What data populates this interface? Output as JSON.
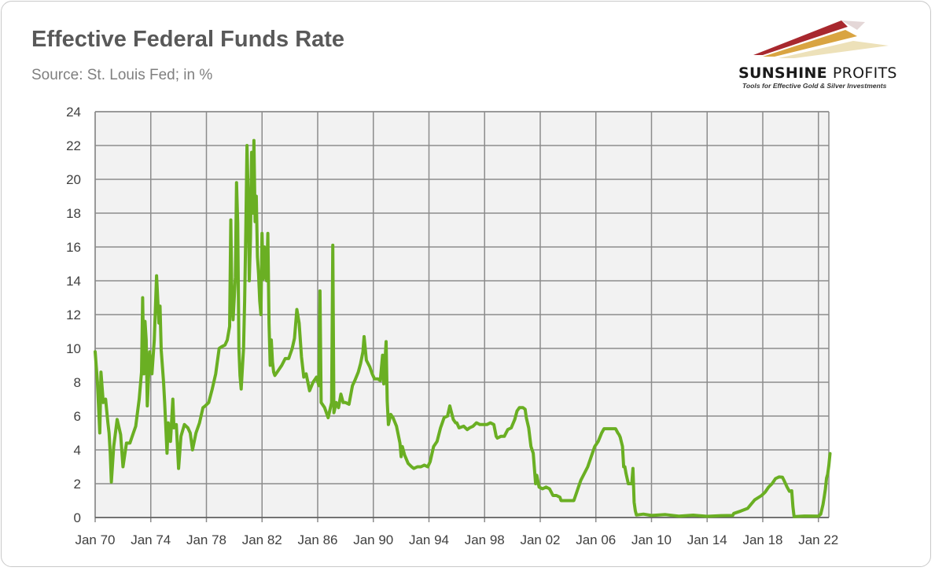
{
  "header": {
    "title": "Effective Federal Funds Rate",
    "subtitle": "Source: St. Louis Fed; in %"
  },
  "logo": {
    "name_bold": "SUNSHINE",
    "name_thin": "PROFITS",
    "tagline": "Tools for Effective Gold & Silver Investments"
  },
  "colors": {
    "line": "#6aaf23",
    "plot_bg": "#f2f2f2",
    "grid": "#8c8c8c",
    "text": "#404040"
  },
  "chart_data": {
    "type": "line",
    "title": "Effective Federal Funds Rate",
    "subtitle": "Source: St. Louis Fed; in %",
    "xlabel": "",
    "ylabel": "",
    "ylim": [
      0,
      24
    ],
    "xlim": [
      "1970-01",
      "2022-10"
    ],
    "grid": true,
    "legend": "none",
    "y_ticks": [
      0,
      2,
      4,
      6,
      8,
      10,
      12,
      14,
      16,
      18,
      20,
      22,
      24
    ],
    "x_tick_labels": [
      "Jan 70",
      "Jan 74",
      "Jan 78",
      "Jan 82",
      "Jan 86",
      "Jan 90",
      "Jan 94",
      "Jan 98",
      "Jan 02",
      "Jan 06",
      "Jan 10",
      "Jan 14",
      "Jan 18",
      "Jan 22"
    ],
    "x_tick_dates": [
      "1970-01",
      "1974-01",
      "1978-01",
      "1982-01",
      "1986-01",
      "1990-01",
      "1994-01",
      "1998-01",
      "2002-01",
      "2006-01",
      "2010-01",
      "2014-01",
      "2018-01",
      "2022-01"
    ],
    "series": [
      {
        "points": [
          [
            "1970-01",
            9.8
          ],
          [
            "1970-03",
            8.0
          ],
          [
            "1970-05",
            5.0
          ],
          [
            "1970-06",
            8.6
          ],
          [
            "1970-08",
            6.8
          ],
          [
            "1970-10",
            7.0
          ],
          [
            "1970-12",
            5.6
          ],
          [
            "1971-01",
            5.0
          ],
          [
            "1971-02",
            3.8
          ],
          [
            "1971-03",
            2.1
          ],
          [
            "1971-05",
            4.2
          ],
          [
            "1971-08",
            5.8
          ],
          [
            "1971-11",
            4.9
          ],
          [
            "1972-01",
            3.0
          ],
          [
            "1972-04",
            4.4
          ],
          [
            "1972-07",
            4.4
          ],
          [
            "1972-10",
            5.0
          ],
          [
            "1972-12",
            5.4
          ],
          [
            "1973-03",
            7.0
          ],
          [
            "1973-05",
            8.6
          ],
          [
            "1973-06",
            13.0
          ],
          [
            "1973-07",
            8.5
          ],
          [
            "1973-08",
            11.6
          ],
          [
            "1973-09",
            10.5
          ],
          [
            "1973-10",
            6.6
          ],
          [
            "1973-12",
            9.8
          ],
          [
            "1974-02",
            8.5
          ],
          [
            "1974-04",
            10.5
          ],
          [
            "1974-06",
            14.3
          ],
          [
            "1974-07",
            12.9
          ],
          [
            "1974-08",
            11.5
          ],
          [
            "1974-09",
            12.5
          ],
          [
            "1974-10",
            9.9
          ],
          [
            "1974-12",
            8.0
          ],
          [
            "1975-01",
            6.8
          ],
          [
            "1975-03",
            3.8
          ],
          [
            "1975-04",
            5.6
          ],
          [
            "1975-06",
            4.5
          ],
          [
            "1975-08",
            7.0
          ],
          [
            "1975-09",
            5.3
          ],
          [
            "1975-11",
            5.5
          ],
          [
            "1976-01",
            2.9
          ],
          [
            "1976-03",
            4.8
          ],
          [
            "1976-06",
            5.5
          ],
          [
            "1976-09",
            5.3
          ],
          [
            "1976-11",
            5.0
          ],
          [
            "1977-01",
            4.0
          ],
          [
            "1977-04",
            5.0
          ],
          [
            "1977-07",
            5.6
          ],
          [
            "1977-10",
            6.5
          ],
          [
            "1977-12",
            6.6
          ],
          [
            "1978-03",
            6.8
          ],
          [
            "1978-06",
            7.6
          ],
          [
            "1978-09",
            8.5
          ],
          [
            "1978-12",
            10.0
          ],
          [
            "1979-02",
            10.1
          ],
          [
            "1979-05",
            10.2
          ],
          [
            "1979-07",
            10.5
          ],
          [
            "1979-09",
            11.3
          ],
          [
            "1979-10",
            17.6
          ],
          [
            "1979-11",
            13.0
          ],
          [
            "1979-12",
            11.7
          ],
          [
            "1980-02",
            14.2
          ],
          [
            "1980-03",
            19.8
          ],
          [
            "1980-04",
            17.4
          ],
          [
            "1980-05",
            10.0
          ],
          [
            "1980-06",
            8.4
          ],
          [
            "1980-07",
            7.6
          ],
          [
            "1980-09",
            10.0
          ],
          [
            "1980-10",
            12.8
          ],
          [
            "1980-11",
            17.0
          ],
          [
            "1980-12",
            22.0
          ],
          [
            "1981-01",
            19.0
          ],
          [
            "1981-02",
            14.0
          ],
          [
            "1981-03",
            16.5
          ],
          [
            "1981-04",
            21.6
          ],
          [
            "1981-05",
            18.0
          ],
          [
            "1981-06",
            22.3
          ],
          [
            "1981-07",
            17.5
          ],
          [
            "1981-08",
            19.0
          ],
          [
            "1981-09",
            15.4
          ],
          [
            "1981-10",
            14.4
          ],
          [
            "1981-11",
            12.8
          ],
          [
            "1981-12",
            12.0
          ],
          [
            "1982-01",
            16.8
          ],
          [
            "1982-02",
            14.1
          ],
          [
            "1982-03",
            16.0
          ],
          [
            "1982-04",
            14.5
          ],
          [
            "1982-05",
            14.0
          ],
          [
            "1982-06",
            16.8
          ],
          [
            "1982-07",
            11.5
          ],
          [
            "1982-08",
            9.0
          ],
          [
            "1982-09",
            10.5
          ],
          [
            "1982-10",
            9.2
          ],
          [
            "1982-11",
            8.6
          ],
          [
            "1982-12",
            8.4
          ],
          [
            "1983-03",
            8.7
          ],
          [
            "1983-06",
            9.0
          ],
          [
            "1983-09",
            9.4
          ],
          [
            "1983-12",
            9.4
          ],
          [
            "1984-03",
            10.0
          ],
          [
            "1984-05",
            10.6
          ],
          [
            "1984-07",
            12.3
          ],
          [
            "1984-09",
            11.5
          ],
          [
            "1984-11",
            9.5
          ],
          [
            "1985-01",
            8.3
          ],
          [
            "1985-03",
            8.5
          ],
          [
            "1985-06",
            7.5
          ],
          [
            "1985-09",
            8.0
          ],
          [
            "1985-12",
            8.3
          ],
          [
            "1986-02",
            7.8
          ],
          [
            "1986-03",
            13.4
          ],
          [
            "1986-04",
            6.8
          ],
          [
            "1986-07",
            6.5
          ],
          [
            "1986-10",
            5.9
          ],
          [
            "1986-12",
            6.5
          ],
          [
            "1987-01",
            6.8
          ],
          [
            "1987-02",
            16.1
          ],
          [
            "1987-03",
            6.2
          ],
          [
            "1987-05",
            6.8
          ],
          [
            "1987-07",
            6.5
          ],
          [
            "1987-09",
            7.3
          ],
          [
            "1987-11",
            6.8
          ],
          [
            "1988-01",
            6.8
          ],
          [
            "1988-04",
            6.7
          ],
          [
            "1988-07",
            7.8
          ],
          [
            "1988-09",
            8.1
          ],
          [
            "1988-12",
            8.6
          ],
          [
            "1989-02",
            9.1
          ],
          [
            "1989-04",
            9.8
          ],
          [
            "1989-05",
            10.7
          ],
          [
            "1989-07",
            9.3
          ],
          [
            "1989-10",
            8.9
          ],
          [
            "1989-12",
            8.5
          ],
          [
            "1990-02",
            8.2
          ],
          [
            "1990-05",
            8.2
          ],
          [
            "1990-07",
            8.1
          ],
          [
            "1990-09",
            9.6
          ],
          [
            "1990-10",
            7.9
          ],
          [
            "1990-12",
            10.4
          ],
          [
            "1991-01",
            6.9
          ],
          [
            "1991-02",
            5.5
          ],
          [
            "1991-04",
            6.1
          ],
          [
            "1991-06",
            5.9
          ],
          [
            "1991-09",
            5.4
          ],
          [
            "1991-12",
            4.4
          ],
          [
            "1992-01",
            3.6
          ],
          [
            "1992-02",
            4.2
          ],
          [
            "1992-04",
            3.7
          ],
          [
            "1992-07",
            3.2
          ],
          [
            "1992-10",
            3.0
          ],
          [
            "1992-12",
            2.9
          ],
          [
            "1993-03",
            3.0
          ],
          [
            "1993-06",
            3.0
          ],
          [
            "1993-09",
            3.1
          ],
          [
            "1993-12",
            3.0
          ],
          [
            "1994-02",
            3.3
          ],
          [
            "1994-05",
            4.2
          ],
          [
            "1994-08",
            4.5
          ],
          [
            "1994-11",
            5.3
          ],
          [
            "1994-12",
            5.5
          ],
          [
            "1995-02",
            5.9
          ],
          [
            "1995-05",
            6.0
          ],
          [
            "1995-07",
            6.6
          ],
          [
            "1995-10",
            5.8
          ],
          [
            "1995-12",
            5.6
          ],
          [
            "1996-01",
            5.6
          ],
          [
            "1996-03",
            5.3
          ],
          [
            "1996-07",
            5.4
          ],
          [
            "1996-10",
            5.2
          ],
          [
            "1996-12",
            5.3
          ],
          [
            "1997-03",
            5.4
          ],
          [
            "1997-06",
            5.6
          ],
          [
            "1997-09",
            5.5
          ],
          [
            "1997-12",
            5.5
          ],
          [
            "1998-03",
            5.5
          ],
          [
            "1998-06",
            5.6
          ],
          [
            "1998-09",
            5.5
          ],
          [
            "1998-11",
            4.8
          ],
          [
            "1998-12",
            4.7
          ],
          [
            "1999-03",
            4.8
          ],
          [
            "1999-06",
            4.8
          ],
          [
            "1999-09",
            5.2
          ],
          [
            "1999-12",
            5.3
          ],
          [
            "2000-03",
            5.8
          ],
          [
            "2000-05",
            6.3
          ],
          [
            "2000-07",
            6.5
          ],
          [
            "2000-10",
            6.5
          ],
          [
            "2000-12",
            6.4
          ],
          [
            "2001-01",
            5.9
          ],
          [
            "2001-03",
            5.3
          ],
          [
            "2001-05",
            4.2
          ],
          [
            "2001-07",
            3.8
          ],
          [
            "2001-09",
            2.0
          ],
          [
            "2001-10",
            2.5
          ],
          [
            "2001-12",
            1.8
          ],
          [
            "2002-03",
            1.7
          ],
          [
            "2002-06",
            1.8
          ],
          [
            "2002-09",
            1.7
          ],
          [
            "2002-12",
            1.3
          ],
          [
            "2003-03",
            1.3
          ],
          [
            "2003-06",
            1.2
          ],
          [
            "2003-07",
            1.0
          ],
          [
            "2003-12",
            1.0
          ],
          [
            "2004-03",
            1.0
          ],
          [
            "2004-06",
            1.0
          ],
          [
            "2004-08",
            1.4
          ],
          [
            "2004-10",
            1.8
          ],
          [
            "2004-12",
            2.2
          ],
          [
            "2005-03",
            2.6
          ],
          [
            "2005-06",
            3.0
          ],
          [
            "2005-09",
            3.6
          ],
          [
            "2005-12",
            4.2
          ],
          [
            "2006-03",
            4.5
          ],
          [
            "2006-06",
            5.0
          ],
          [
            "2006-08",
            5.25
          ],
          [
            "2006-12",
            5.25
          ],
          [
            "2007-03",
            5.25
          ],
          [
            "2007-06",
            5.25
          ],
          [
            "2007-08",
            5.0
          ],
          [
            "2007-09",
            4.9
          ],
          [
            "2007-10",
            4.75
          ],
          [
            "2007-12",
            4.2
          ],
          [
            "2008-01",
            3.0
          ],
          [
            "2008-02",
            3.0
          ],
          [
            "2008-03",
            2.6
          ],
          [
            "2008-05",
            2.0
          ],
          [
            "2008-08",
            2.0
          ],
          [
            "2008-09",
            2.9
          ],
          [
            "2008-10",
            0.9
          ],
          [
            "2008-11",
            0.4
          ],
          [
            "2008-12",
            0.15
          ],
          [
            "2009-06",
            0.2
          ],
          [
            "2010-01",
            0.12
          ],
          [
            "2011-01",
            0.17
          ],
          [
            "2012-01",
            0.08
          ],
          [
            "2013-01",
            0.14
          ],
          [
            "2014-01",
            0.07
          ],
          [
            "2015-01",
            0.11
          ],
          [
            "2015-11",
            0.12
          ],
          [
            "2015-12",
            0.24
          ],
          [
            "2016-06",
            0.38
          ],
          [
            "2016-12",
            0.54
          ],
          [
            "2017-03",
            0.79
          ],
          [
            "2017-06",
            1.04
          ],
          [
            "2017-12",
            1.3
          ],
          [
            "2018-03",
            1.5
          ],
          [
            "2018-06",
            1.8
          ],
          [
            "2018-09",
            2.0
          ],
          [
            "2018-12",
            2.3
          ],
          [
            "2019-03",
            2.4
          ],
          [
            "2019-06",
            2.38
          ],
          [
            "2019-08",
            2.1
          ],
          [
            "2019-10",
            1.8
          ],
          [
            "2019-12",
            1.55
          ],
          [
            "2020-02",
            1.58
          ],
          [
            "2020-03",
            0.65
          ],
          [
            "2020-04",
            0.05
          ],
          [
            "2021-01",
            0.09
          ],
          [
            "2022-01",
            0.08
          ],
          [
            "2022-03",
            0.2
          ],
          [
            "2022-05",
            0.77
          ],
          [
            "2022-06",
            1.21
          ],
          [
            "2022-07",
            1.68
          ],
          [
            "2022-08",
            2.33
          ],
          [
            "2022-09",
            2.56
          ],
          [
            "2022-10",
            3.08
          ],
          [
            "2022-11",
            3.78
          ]
        ]
      }
    ]
  }
}
